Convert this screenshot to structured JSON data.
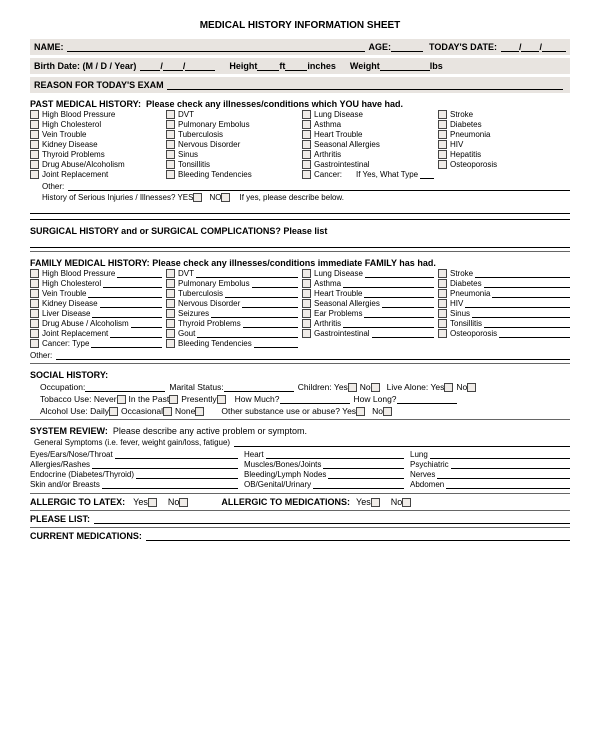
{
  "title": "MEDICAL HISTORY INFORMATION SHEET",
  "header": {
    "name_label": "NAME:",
    "age_label": "AGE:",
    "todays_date_label": "TODAY'S DATE:",
    "birth_date_label": "Birth Date: (M / D / Year)",
    "height_label": "Height",
    "ft_label": "ft",
    "inches_label": "inches",
    "weight_label": "Weight",
    "lbs_label": "lbs"
  },
  "reason_label": "REASON FOR TODAY'S EXAM",
  "pmh": {
    "label": "PAST MEDICAL HISTORY:",
    "instr": "Please check any illnesses/conditions which YOU have had.",
    "col1": [
      "High Blood Pressure",
      "High Cholesterol",
      "Vein Trouble",
      "Kidney Disease",
      "Thyroid Problems",
      "Drug Abuse/Alcoholism",
      "Joint Replacement"
    ],
    "col2": [
      "DVT",
      "Pulmonary Embolus",
      "Tuberculosis",
      "Nervous Disorder",
      "Sinus",
      "Tonsillitis",
      "Bleeding Tendencies"
    ],
    "col3": [
      "Lung Disease",
      "Asthma",
      "Heart Trouble",
      "Seasonal Allergies",
      "Arthritis",
      "Gastrointestinal",
      "Cancer:"
    ],
    "c3_extra": "If Yes, What Type",
    "col4": [
      "Stroke",
      "Diabetes",
      "Pneumonia",
      "HIV",
      "Hepatitis",
      "Osteoporosis"
    ],
    "other_label": "Other:",
    "injuries_label": "History of Serious Injuries / Illnesses?  YES",
    "no_label": "NO",
    "describe": "If yes, please describe below."
  },
  "surgical_label": "SURGICAL HISTORY and or SURGICAL COMPLICATIONS? Please list",
  "fmh": {
    "label": "FAMILY MEDICAL HISTORY:",
    "instr": "Please check any illnesses/conditions immediate FAMILY has had.",
    "col1": [
      "High Blood Pressure",
      "High Cholesterol",
      "Vein Trouble",
      "Kidney Disease",
      "Liver Disease",
      "Drug Abuse / Alcoholism",
      "Joint Replacement",
      "Cancer: Type"
    ],
    "col2": [
      "DVT",
      "Pulmonary Embolus",
      "Tuberculosis",
      "Nervous Disorder",
      "Seizures",
      "Thyroid Problems",
      "Gout",
      "Bleeding Tendencies"
    ],
    "col3": [
      "Lung Disease",
      "Asthma",
      "Heart Trouble",
      "Seasonal Allergies",
      "Ear Problems",
      "Arthritis",
      "Gastrointestinal"
    ],
    "col4": [
      "Stroke",
      "Diabetes",
      "Pneumonia",
      "HIV",
      "Sinus",
      "Tonsillitis",
      "Osteoporosis"
    ],
    "other_label": "Other:"
  },
  "social": {
    "label": "SOCIAL HISTORY:",
    "occupation": "Occupation:",
    "marital": "Marital Status:",
    "children": "Children: Yes",
    "no": "No",
    "live_alone": "Live Alone: Yes",
    "tobacco": "Tobacco Use: Never",
    "inpast": "In the Past",
    "presently": "Presently",
    "howmuch": "How Much?",
    "howlong": "How Long?",
    "alcohol": "Alcohol Use:  Daily",
    "occasional": "Occasional",
    "none": "None",
    "othersub": "Other substance use or abuse?  Yes"
  },
  "sr": {
    "label": "SYSTEM REVIEW:",
    "instr": "Please describe any active problem or symptom.",
    "general": "General Symptoms (i.e. fever, weight gain/loss, fatigue)",
    "col1": [
      "Eyes/Ears/Nose/Throat",
      "Allergies/Rashes",
      "Endocrine (Diabetes/Thyroid)",
      "Skin and/or Breasts"
    ],
    "col2": [
      "Heart",
      "Muscles/Bones/Joints",
      "Bleeding/Lymph Nodes",
      "OB/Genital/Urinary"
    ],
    "col3": [
      "Lung",
      "Psychiatric",
      "Nerves",
      "Abdomen"
    ]
  },
  "latex": {
    "label": "ALLERGIC TO LATEX:",
    "yes": "Yes",
    "no": "No"
  },
  "meds_allergy": {
    "label": "ALLERGIC TO MEDICATIONS:",
    "yes": "Yes",
    "no": "No"
  },
  "please_list": "PLEASE LIST:",
  "current_meds": "CURRENT MEDICATIONS:",
  "colors": {
    "band_bg": "#e8e4e0",
    "text": "#000000"
  }
}
